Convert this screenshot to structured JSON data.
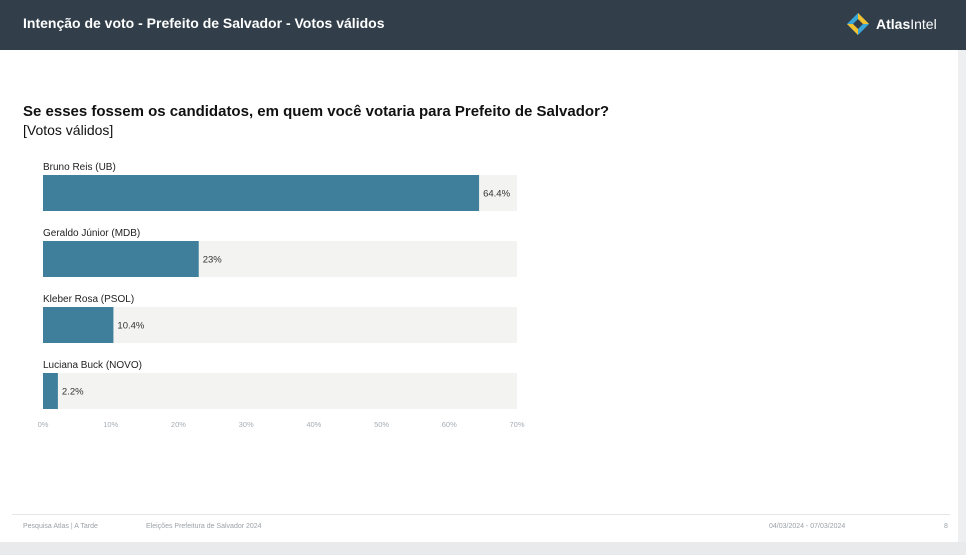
{
  "header": {
    "title": "Intenção de voto - Prefeito de Salvador - Votos válidos",
    "brand_bold": "Atlas",
    "brand_rest": "Intel"
  },
  "question": "Se esses fossem os candidatos, em quem você votaria para Prefeito de Salvador?",
  "subtitle": "[Votos válidos]",
  "chart_data": {
    "type": "bar",
    "orientation": "horizontal",
    "categories": [
      "Bruno Reis (UB)",
      "Geraldo Júnior (MDB)",
      "Kleber Rosa (PSOL)",
      "Luciana Buck (NOVO)"
    ],
    "values": [
      64.4,
      23,
      10.4,
      2.2
    ],
    "value_labels": [
      "64.4%",
      "23%",
      "10.4%",
      "2.2%"
    ],
    "xlim": [
      0,
      70
    ],
    "ticks": [
      0,
      10,
      20,
      30,
      40,
      50,
      60,
      70
    ],
    "tick_labels": [
      "0%",
      "10%",
      "20%",
      "30%",
      "40%",
      "50%",
      "60%",
      "70%"
    ],
    "bar_color": "#3f7f9b",
    "track_color": "#f3f3f1",
    "grid": false
  },
  "footer": {
    "source": "Pesquisa Atlas | A Tarde",
    "survey": "Eleições Prefeitura de Salvador 2024",
    "dates": "04/03/2024 - 07/03/2024",
    "page": "8"
  },
  "colors": {
    "header_bg": "#323f4a",
    "logo_blue": "#3aa6d8",
    "logo_yellow": "#f2c12e"
  }
}
